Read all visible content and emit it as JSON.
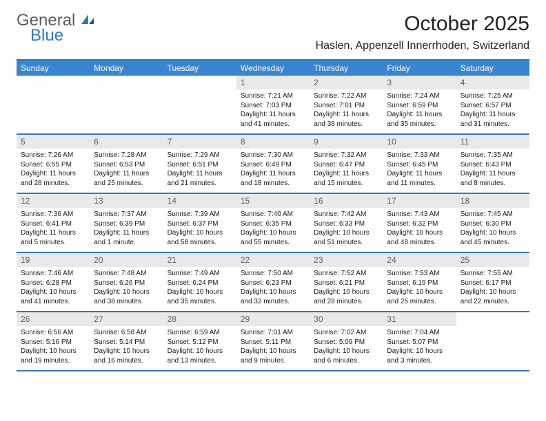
{
  "brand": {
    "general": "General",
    "blue": "Blue"
  },
  "title": "October 2025",
  "location": "Haslen, Appenzell Innerrhoden, Switzerland",
  "colors": {
    "header_bg": "#3a85d0",
    "rule": "#2f78c1",
    "daynum_bg": "#e9e9e9",
    "daynum_fg": "#5f5f5f",
    "body_fg": "#1a1a1a",
    "page_bg": "#ffffff"
  },
  "weekdays": [
    "Sunday",
    "Monday",
    "Tuesday",
    "Wednesday",
    "Thursday",
    "Friday",
    "Saturday"
  ],
  "first_weekday_index": 3,
  "days": [
    {
      "n": 1,
      "sunrise": "7:21 AM",
      "sunset": "7:03 PM",
      "daylight": "11 hours and 41 minutes."
    },
    {
      "n": 2,
      "sunrise": "7:22 AM",
      "sunset": "7:01 PM",
      "daylight": "11 hours and 38 minutes."
    },
    {
      "n": 3,
      "sunrise": "7:24 AM",
      "sunset": "6:59 PM",
      "daylight": "11 hours and 35 minutes."
    },
    {
      "n": 4,
      "sunrise": "7:25 AM",
      "sunset": "6:57 PM",
      "daylight": "11 hours and 31 minutes."
    },
    {
      "n": 5,
      "sunrise": "7:26 AM",
      "sunset": "6:55 PM",
      "daylight": "11 hours and 28 minutes."
    },
    {
      "n": 6,
      "sunrise": "7:28 AM",
      "sunset": "6:53 PM",
      "daylight": "11 hours and 25 minutes."
    },
    {
      "n": 7,
      "sunrise": "7:29 AM",
      "sunset": "6:51 PM",
      "daylight": "11 hours and 21 minutes."
    },
    {
      "n": 8,
      "sunrise": "7:30 AM",
      "sunset": "6:49 PM",
      "daylight": "11 hours and 18 minutes."
    },
    {
      "n": 9,
      "sunrise": "7:32 AM",
      "sunset": "6:47 PM",
      "daylight": "11 hours and 15 minutes."
    },
    {
      "n": 10,
      "sunrise": "7:33 AM",
      "sunset": "6:45 PM",
      "daylight": "11 hours and 11 minutes."
    },
    {
      "n": 11,
      "sunrise": "7:35 AM",
      "sunset": "6:43 PM",
      "daylight": "11 hours and 8 minutes."
    },
    {
      "n": 12,
      "sunrise": "7:36 AM",
      "sunset": "6:41 PM",
      "daylight": "11 hours and 5 minutes."
    },
    {
      "n": 13,
      "sunrise": "7:37 AM",
      "sunset": "6:39 PM",
      "daylight": "11 hours and 1 minute."
    },
    {
      "n": 14,
      "sunrise": "7:39 AM",
      "sunset": "6:37 PM",
      "daylight": "10 hours and 58 minutes."
    },
    {
      "n": 15,
      "sunrise": "7:40 AM",
      "sunset": "6:35 PM",
      "daylight": "10 hours and 55 minutes."
    },
    {
      "n": 16,
      "sunrise": "7:42 AM",
      "sunset": "6:33 PM",
      "daylight": "10 hours and 51 minutes."
    },
    {
      "n": 17,
      "sunrise": "7:43 AM",
      "sunset": "6:32 PM",
      "daylight": "10 hours and 48 minutes."
    },
    {
      "n": 18,
      "sunrise": "7:45 AM",
      "sunset": "6:30 PM",
      "daylight": "10 hours and 45 minutes."
    },
    {
      "n": 19,
      "sunrise": "7:46 AM",
      "sunset": "6:28 PM",
      "daylight": "10 hours and 41 minutes."
    },
    {
      "n": 20,
      "sunrise": "7:48 AM",
      "sunset": "6:26 PM",
      "daylight": "10 hours and 38 minutes."
    },
    {
      "n": 21,
      "sunrise": "7:49 AM",
      "sunset": "6:24 PM",
      "daylight": "10 hours and 35 minutes."
    },
    {
      "n": 22,
      "sunrise": "7:50 AM",
      "sunset": "6:23 PM",
      "daylight": "10 hours and 32 minutes."
    },
    {
      "n": 23,
      "sunrise": "7:52 AM",
      "sunset": "6:21 PM",
      "daylight": "10 hours and 28 minutes."
    },
    {
      "n": 24,
      "sunrise": "7:53 AM",
      "sunset": "6:19 PM",
      "daylight": "10 hours and 25 minutes."
    },
    {
      "n": 25,
      "sunrise": "7:55 AM",
      "sunset": "6:17 PM",
      "daylight": "10 hours and 22 minutes."
    },
    {
      "n": 26,
      "sunrise": "6:56 AM",
      "sunset": "5:16 PM",
      "daylight": "10 hours and 19 minutes."
    },
    {
      "n": 27,
      "sunrise": "6:58 AM",
      "sunset": "5:14 PM",
      "daylight": "10 hours and 16 minutes."
    },
    {
      "n": 28,
      "sunrise": "6:59 AM",
      "sunset": "5:12 PM",
      "daylight": "10 hours and 13 minutes."
    },
    {
      "n": 29,
      "sunrise": "7:01 AM",
      "sunset": "5:11 PM",
      "daylight": "10 hours and 9 minutes."
    },
    {
      "n": 30,
      "sunrise": "7:02 AM",
      "sunset": "5:09 PM",
      "daylight": "10 hours and 6 minutes."
    },
    {
      "n": 31,
      "sunrise": "7:04 AM",
      "sunset": "5:07 PM",
      "daylight": "10 hours and 3 minutes."
    }
  ],
  "labels": {
    "sunrise": "Sunrise: ",
    "sunset": "Sunset: ",
    "daylight": "Daylight: "
  }
}
